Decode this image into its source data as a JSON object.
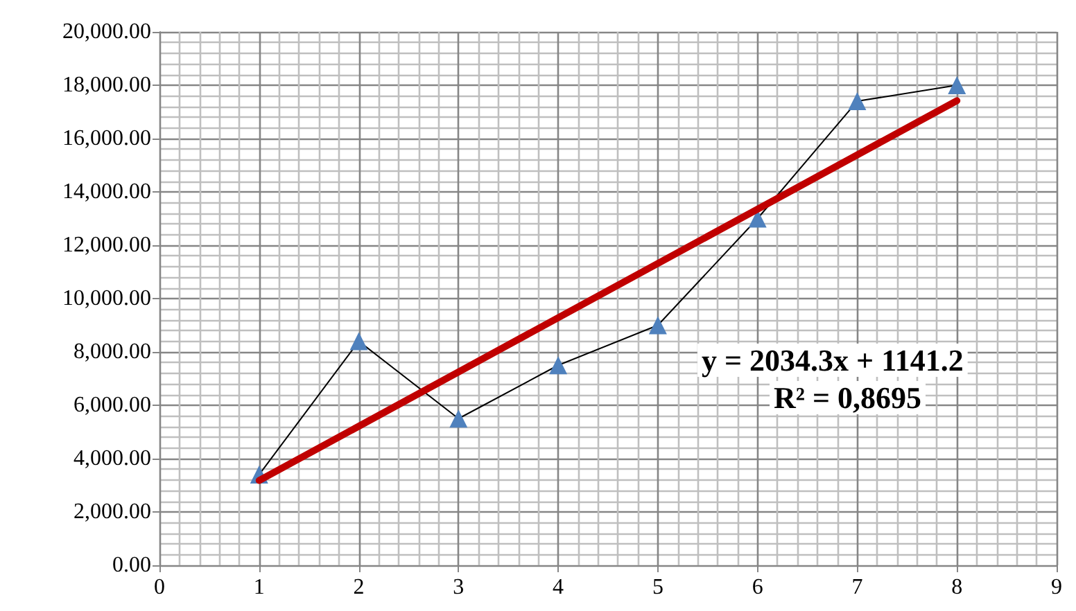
{
  "chart_data": {
    "type": "line",
    "x": [
      1,
      2,
      3,
      4,
      5,
      6,
      7,
      8
    ],
    "series": [
      {
        "color": "#4f81bd",
        "values": [
          3400,
          8400,
          5500,
          7500,
          9000,
          13000,
          17400,
          18000
        ],
        "marker": "triangle"
      },
      {
        "type": "line",
        "color": "#c00000",
        "x": [
          1,
          8
        ],
        "values": [
          3180,
          17420
        ],
        "marker": "none"
      }
    ],
    "xlim": [
      0,
      9
    ],
    "xticks": [
      0,
      1,
      2,
      3,
      4,
      5,
      6,
      7,
      8,
      9
    ],
    "ylim": [
      0,
      20000
    ],
    "yticks": [
      {
        "value": 0,
        "label": "0.00"
      },
      {
        "value": 2000,
        "label": "2,000.00"
      },
      {
        "value": 4000,
        "label": "4,000.00"
      },
      {
        "value": 6000,
        "label": "6,000.00"
      },
      {
        "value": 8000,
        "label": "8,000.00"
      },
      {
        "value": 10000,
        "label": "10,000.00"
      },
      {
        "value": 12000,
        "label": "12,000.00"
      },
      {
        "value": 14000,
        "label": "14,000.00"
      },
      {
        "value": 16000,
        "label": "16,000.00"
      },
      {
        "value": 18000,
        "label": "18,000.00"
      },
      {
        "value": 20000,
        "label": "20,000.00"
      }
    ],
    "annotations": [
      "y = 2034.3x + 1141.2",
      "R² = 0,8695"
    ],
    "grid": true
  }
}
